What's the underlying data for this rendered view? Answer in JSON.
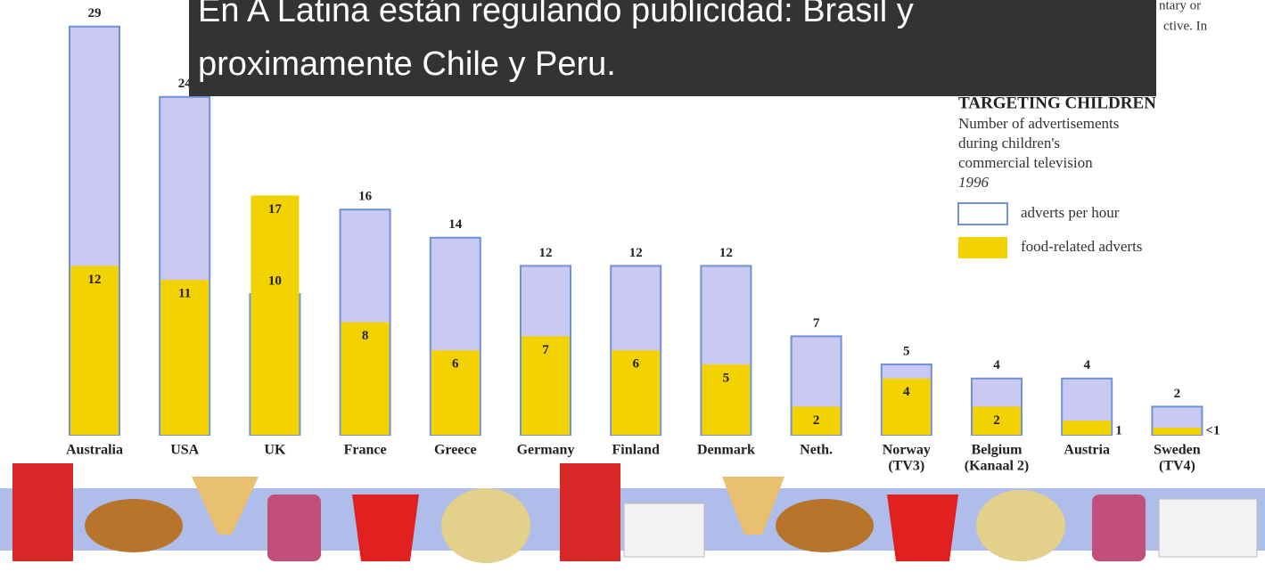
{
  "chart_data": {
    "type": "bar",
    "title": "TARGETING CHILDREN",
    "subtitle": [
      "Number of advertisements",
      "during children's",
      "commercial television"
    ],
    "year": "1996",
    "overlay_note": [
      "En A Latina están regulando publicidad: Brasil y",
      "proximamente Chile y Peru."
    ],
    "background_text": [
      "ntary or",
      "ctive. In"
    ],
    "categories": [
      [
        "Australia"
      ],
      [
        "USA"
      ],
      [
        "UK"
      ],
      [
        "France"
      ],
      [
        "Greece"
      ],
      [
        "Germany"
      ],
      [
        "Finland"
      ],
      [
        "Denmark"
      ],
      [
        "Neth."
      ],
      [
        "Norway",
        "(TV3)"
      ],
      [
        "Belgium",
        "(Kanaal 2)"
      ],
      [
        "Austria"
      ],
      [
        "Sweden",
        "(TV4)"
      ]
    ],
    "series": [
      {
        "name": "adverts per hour",
        "color": "#c9c9f2",
        "stroke": "#6f93d6",
        "values": [
          29,
          24,
          10,
          16,
          14,
          12,
          12,
          12,
          7,
          5,
          4,
          4,
          2
        ]
      },
      {
        "name": "food-related adverts",
        "color": "#f2d200",
        "values": [
          12,
          11,
          17,
          8,
          6,
          7,
          6,
          5,
          2,
          4,
          2,
          1,
          0.5
        ],
        "value_labels": [
          "12",
          "11",
          "17",
          "8",
          "6",
          "7",
          "6",
          "5",
          "2",
          "4",
          "2",
          "1",
          "<1"
        ]
      }
    ]
  }
}
